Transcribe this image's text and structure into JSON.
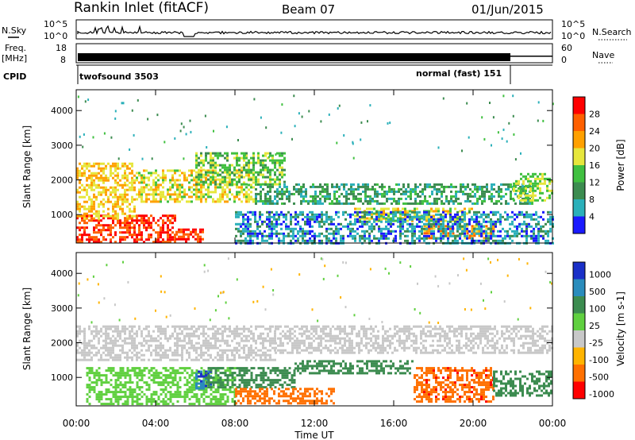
{
  "header": {
    "station": "Rankin Inlet (fitACF)",
    "beam": "Beam 07",
    "date": "01/Jun/2015"
  },
  "top_panels": {
    "nsky_label": "N.Sky",
    "nsearch_label": "N.Search",
    "nsky_ticks": [
      "10^5",
      "10^0"
    ],
    "nsearch_ticks": [
      "10^5",
      "10^0"
    ],
    "freq_label_1": "Freq.",
    "freq_label_2": "[MHz]",
    "freq_ticks": [
      "18",
      "8"
    ],
    "nave_label": "Nave",
    "nave_ticks": [
      "60",
      "0"
    ],
    "cpid_label": "CPID",
    "cpid_modes": [
      {
        "name": "twofsound 3503",
        "start_hour": 0.3,
        "end_hour": 21.95
      },
      {
        "name": "normal (fast) 151",
        "start_hour": 21.95,
        "end_hour": 24.0
      }
    ]
  },
  "time_axis": {
    "label": "Time UT",
    "ticks": [
      "00:00",
      "04:00",
      "08:00",
      "12:00",
      "16:00",
      "20:00",
      "00:00"
    ]
  },
  "range_axis": {
    "label": "Slant Range [km]",
    "ticks": [
      "1000",
      "2000",
      "3000",
      "4000"
    ]
  },
  "power_colorbar": {
    "label": "Power [dB]",
    "ticks": [
      "4",
      "8",
      "12",
      "16",
      "20",
      "24",
      "28"
    ],
    "colors": [
      "#1a1aff",
      "#2bb0ba",
      "#3c8c50",
      "#40c040",
      "#e6e63c",
      "#ffa000",
      "#ff6000",
      "#ff0000"
    ]
  },
  "velocity_colorbar": {
    "label": "Velocity [m s-1]",
    "ticks": [
      "1000",
      "500",
      "100",
      "25",
      "-25",
      "-100",
      "-500",
      "-1000"
    ],
    "colors": [
      "#1a30c8",
      "#2a8cbc",
      "#3c8c50",
      "#60d040",
      "#c8c8c8",
      "#ffb400",
      "#ff7000",
      "#ff0000"
    ]
  },
  "chart_data": [
    {
      "type": "heatmap",
      "title": "Power",
      "xlabel": "Time UT",
      "ylabel": "Slant Range [km]",
      "xlim": [
        0,
        24
      ],
      "ylim": [
        180,
        4600
      ],
      "colorbar_label": "Power [dB]",
      "scatter_regions": [
        {
          "t0": 0.0,
          "t1": 5.0,
          "r0": 200,
          "r1": 1000,
          "value": 28
        },
        {
          "t0": 5.0,
          "t1": 6.5,
          "r0": 200,
          "r1": 600,
          "value": 28
        },
        {
          "t0": 0.0,
          "t1": 3.0,
          "r0": 900,
          "r1": 2500,
          "value": 20
        },
        {
          "t0": 3.0,
          "t1": 9.0,
          "r0": 1400,
          "r1": 2300,
          "value": 18
        },
        {
          "t0": 6.0,
          "t1": 10.5,
          "r0": 1900,
          "r1": 2800,
          "value": 14
        },
        {
          "t0": 9.0,
          "t1": 23.0,
          "r0": 1300,
          "r1": 1900,
          "value": 10
        },
        {
          "t0": 14.0,
          "t1": 20.0,
          "r0": 800,
          "r1": 1200,
          "value": 18
        },
        {
          "t0": 17.5,
          "t1": 21.0,
          "r0": 300,
          "r1": 700,
          "value": 22
        },
        {
          "t0": 22.0,
          "t1": 24.0,
          "r0": 1400,
          "r1": 2200,
          "value": 16
        },
        {
          "t0": 8.0,
          "t1": 24.0,
          "r0": 200,
          "r1": 1100,
          "value": 6
        }
      ]
    },
    {
      "type": "heatmap",
      "title": "Velocity",
      "xlabel": "Time UT",
      "ylabel": "Slant Range [km]",
      "xlim": [
        0,
        24
      ],
      "ylim": [
        180,
        4600
      ],
      "colorbar_label": "Velocity [m s-1]",
      "scatter_regions": [
        {
          "t0": 0.0,
          "t1": 10.0,
          "r0": 1500,
          "r1": 2500,
          "value": 0
        },
        {
          "t0": 10.0,
          "t1": 24.0,
          "r0": 1700,
          "r1": 2500,
          "value": 0
        },
        {
          "t0": 0.5,
          "t1": 8.0,
          "r0": 250,
          "r1": 1300,
          "value": 60
        },
        {
          "t0": 6.0,
          "t1": 6.8,
          "r0": 700,
          "r1": 1200,
          "value": 1000
        },
        {
          "t0": 6.5,
          "t1": 11.0,
          "r0": 700,
          "r1": 1300,
          "value": 200
        },
        {
          "t0": 11.0,
          "t1": 17.0,
          "r0": 1100,
          "r1": 1500,
          "value": 150
        },
        {
          "t0": 8.0,
          "t1": 13.0,
          "r0": 250,
          "r1": 700,
          "value": -150
        },
        {
          "t0": 17.0,
          "t1": 21.0,
          "r0": 300,
          "r1": 1300,
          "value": -400
        },
        {
          "t0": 21.0,
          "t1": 24.0,
          "r0": 500,
          "r1": 1200,
          "value": 150
        }
      ]
    }
  ]
}
